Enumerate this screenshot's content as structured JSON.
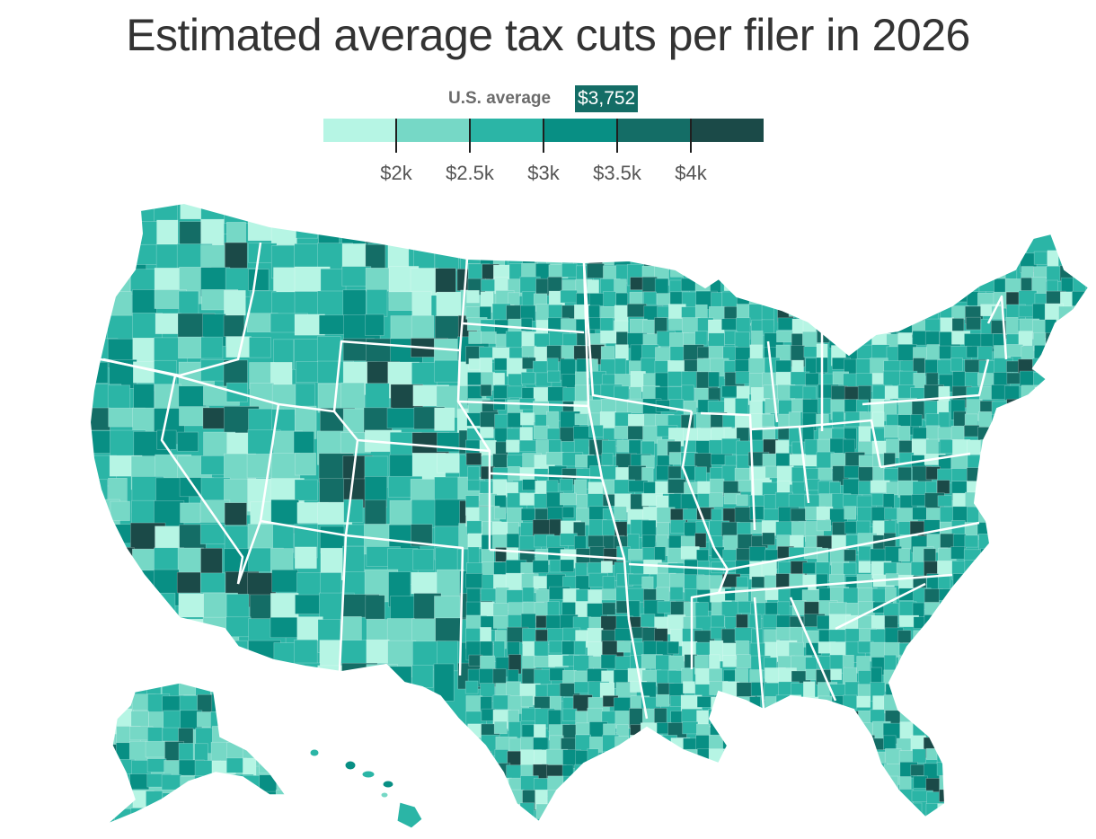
{
  "title": "Estimated average tax cuts per filer in 2026",
  "us_average": {
    "label": "U.S. average",
    "value": "$3,752"
  },
  "legend": {
    "colors": [
      "#b6f5e4",
      "#76d8c6",
      "#2bb5a6",
      "#088f84",
      "#146d66",
      "#1b4a48"
    ],
    "ticks": [
      "$2k",
      "$2.5k",
      "$3k",
      "$3.5k",
      "$4k"
    ]
  },
  "map": {
    "type": "choropleth",
    "region": "United States counties",
    "border_color": "#ffffff"
  }
}
